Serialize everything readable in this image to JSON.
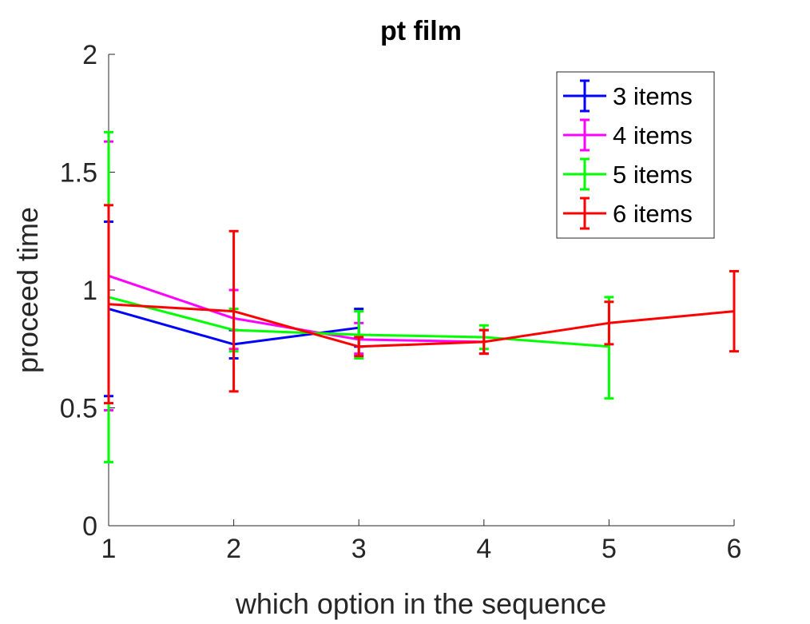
{
  "chart_data": {
    "type": "line",
    "title": "pt film",
    "xlabel": "which option in the sequence",
    "ylabel": "proceed time",
    "xlim": [
      1,
      6
    ],
    "ylim": [
      0,
      2
    ],
    "xticks": [
      "1",
      "2",
      "3",
      "4",
      "5",
      "6"
    ],
    "yticks": [
      "0",
      "0.5",
      "1",
      "1.5",
      "2"
    ],
    "grid": false,
    "legend_position": "top-right",
    "error_bars": true,
    "series": [
      {
        "name": "3 items",
        "color": "#0000ff",
        "x": [
          1,
          2,
          3
        ],
        "y": [
          0.92,
          0.77,
          0.84
        ],
        "lower": [
          0.55,
          0.71,
          0.76
        ],
        "upper": [
          1.29,
          0.83,
          0.92
        ]
      },
      {
        "name": "4 items",
        "color": "#ff00ff",
        "x": [
          1,
          2,
          3,
          4
        ],
        "y": [
          1.06,
          0.88,
          0.79,
          0.78
        ],
        "lower": [
          0.49,
          0.75,
          0.73,
          0.73
        ],
        "upper": [
          1.63,
          1.0,
          0.86,
          0.83
        ]
      },
      {
        "name": "5 items",
        "color": "#00ff00",
        "x": [
          1,
          2,
          3,
          4,
          5
        ],
        "y": [
          0.97,
          0.83,
          0.81,
          0.8,
          0.76
        ],
        "lower": [
          0.27,
          0.74,
          0.71,
          0.75,
          0.54
        ],
        "upper": [
          1.67,
          0.92,
          0.91,
          0.85,
          0.97
        ]
      },
      {
        "name": "6 items",
        "color": "#ff0000",
        "x": [
          1,
          2,
          3,
          4,
          5,
          6
        ],
        "y": [
          0.94,
          0.91,
          0.76,
          0.78,
          0.86,
          0.91
        ],
        "lower": [
          0.52,
          0.57,
          0.72,
          0.73,
          0.77,
          0.74
        ],
        "upper": [
          1.36,
          1.25,
          0.8,
          0.83,
          0.95,
          1.08
        ]
      }
    ]
  }
}
